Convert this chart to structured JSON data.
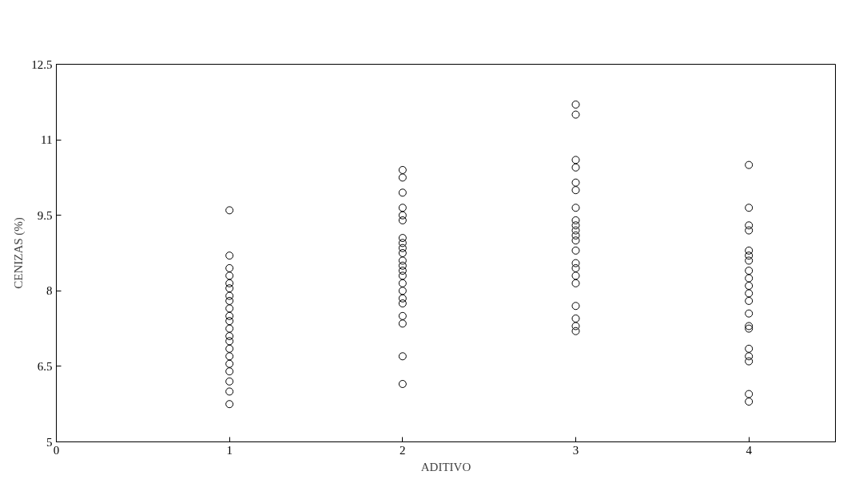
{
  "chart_data": {
    "type": "scatter",
    "xlabel": "ADITIVO",
    "ylabel": "CENIZAS (%)",
    "xlim": [
      0,
      4.5
    ],
    "xticks": [
      0,
      1,
      2,
      3,
      4
    ],
    "ylim": [
      5,
      12.5
    ],
    "yticks": [
      5,
      6.5,
      8,
      9.5,
      11,
      12.5
    ],
    "grid": false,
    "marker": "circle",
    "series": [
      {
        "color": "#000000",
        "x": [
          1,
          1,
          1,
          1,
          1,
          1,
          1,
          1,
          1,
          1,
          1,
          1,
          1,
          1,
          1,
          1,
          1,
          1,
          1,
          1,
          1,
          2,
          2,
          2,
          2,
          2,
          2,
          2,
          2,
          2,
          2,
          2,
          2,
          2,
          2,
          2,
          2,
          2,
          2,
          2,
          2,
          2,
          2,
          3,
          3,
          3,
          3,
          3,
          3,
          3,
          3,
          3,
          3,
          3,
          3,
          3,
          3,
          3,
          3,
          3,
          3,
          3,
          3,
          3,
          4,
          4,
          4,
          4,
          4,
          4,
          4,
          4,
          4,
          4,
          4,
          4,
          4,
          4,
          4,
          4,
          4,
          4,
          4,
          4
        ],
        "values": [
          9.6,
          8.7,
          8.45,
          8.3,
          8.15,
          8.05,
          7.9,
          7.8,
          7.65,
          7.5,
          7.4,
          7.25,
          7.1,
          7.0,
          6.85,
          6.7,
          6.55,
          6.4,
          6.2,
          6.0,
          5.75,
          10.4,
          10.25,
          9.95,
          9.65,
          9.5,
          9.4,
          9.05,
          8.95,
          8.85,
          8.75,
          8.6,
          8.5,
          8.4,
          8.3,
          8.15,
          8.0,
          7.85,
          7.75,
          7.5,
          7.35,
          6.7,
          6.15,
          11.7,
          11.5,
          10.6,
          10.45,
          10.15,
          10.0,
          9.65,
          9.4,
          9.3,
          9.2,
          9.1,
          9.0,
          8.8,
          8.55,
          8.45,
          8.3,
          8.15,
          7.7,
          7.45,
          7.3,
          7.2,
          10.5,
          9.65,
          9.3,
          9.2,
          8.8,
          8.7,
          8.6,
          8.4,
          8.25,
          8.1,
          7.95,
          7.8,
          7.55,
          7.3,
          7.25,
          6.85,
          6.7,
          6.6,
          5.95,
          5.8
        ]
      }
    ]
  }
}
